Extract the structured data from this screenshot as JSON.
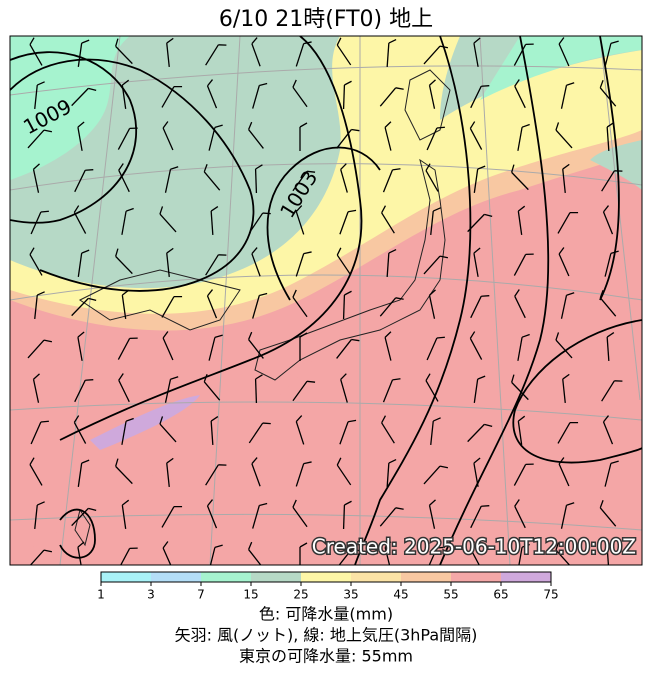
{
  "header": {
    "title": "6/10  21時(FT0)    地上"
  },
  "map": {
    "contour_labels": [
      "1009",
      "1003"
    ],
    "created": "Created: 2025-06-10T12:00:00Z"
  },
  "colorbar": {
    "ticks": [
      1,
      3,
      7,
      15,
      25,
      35,
      45,
      55,
      65,
      75
    ],
    "colors": [
      "#a9f2f7",
      "#b4def7",
      "#a6f3cf",
      "#b6d9c6",
      "#fdf6a7",
      "#fbe3a6",
      "#f8c8a2",
      "#f4a8a8",
      "#cfa9dc"
    ]
  },
  "legend": [
    "色: 可降水量(mm)",
    "矢羽: 風(ノット), 線: 地上気圧(3hPa間隔)",
    "東京の可降水量: 55mm"
  ]
}
